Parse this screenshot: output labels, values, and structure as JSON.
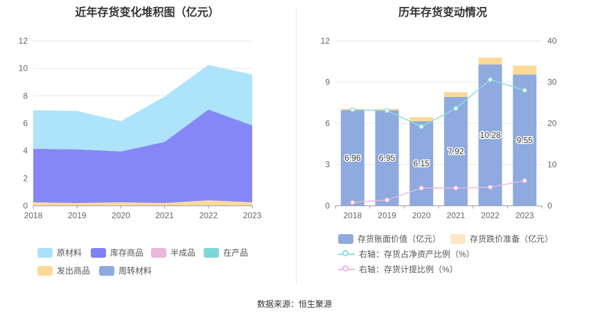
{
  "left": {
    "title": "近年存货变化堆积图（亿元）",
    "legend": [
      {
        "name": "原材料",
        "color": "#a9e1fb"
      },
      {
        "name": "库存商品",
        "color": "#7f81f7"
      },
      {
        "name": "半成品",
        "color": "#e9b8dc"
      },
      {
        "name": "在产品",
        "color": "#7fd6d8"
      },
      {
        "name": "发出商品",
        "color": "#fbd999"
      },
      {
        "name": "周转材料",
        "color": "#8eaade"
      }
    ]
  },
  "right": {
    "title": "历年存货变动情况",
    "legend": [
      {
        "name": "存货账面价值（亿元）",
        "color": "#8eaade",
        "kind": "bar"
      },
      {
        "name": "存货跌价准备（亿元）",
        "color": "#fde6c4",
        "kind": "bar"
      },
      {
        "name": "右轴：存货占净资产比例（%）",
        "color": "#8fdedd",
        "kind": "line"
      },
      {
        "name": "右轴：存货计提比例（%）",
        "color": "#eab8e0",
        "kind": "line"
      }
    ]
  },
  "source": "数据来源：恒生聚源",
  "chart_data": [
    {
      "type": "area",
      "title": "近年存货变化堆积图（亿元）",
      "x": [
        "2018",
        "2019",
        "2020",
        "2021",
        "2022",
        "2023"
      ],
      "ylim": [
        0,
        12
      ],
      "yticks": [
        0,
        2,
        4,
        6,
        8,
        10,
        12
      ],
      "stacked": true,
      "legend_position": "bottom",
      "series": [
        {
          "name": "发出商品",
          "color": "#fbd999",
          "values": [
            0.25,
            0.2,
            0.25,
            0.2,
            0.4,
            0.25
          ]
        },
        {
          "name": "库存商品",
          "color": "#7f81f7",
          "values": [
            3.9,
            3.9,
            3.7,
            4.45,
            6.6,
            5.6
          ]
        },
        {
          "name": "原材料",
          "color": "#a9e1fb",
          "values": [
            2.8,
            2.8,
            2.2,
            3.3,
            3.25,
            3.7
          ]
        },
        {
          "name": "半成品",
          "color": "#e9b8dc",
          "values": [
            0,
            0,
            0,
            0,
            0,
            0
          ]
        },
        {
          "name": "在产品",
          "color": "#7fd6d8",
          "values": [
            0,
            0,
            0,
            0,
            0,
            0
          ]
        },
        {
          "name": "周转材料",
          "color": "#8eaade",
          "values": [
            0,
            0,
            0,
            0,
            0,
            0
          ]
        }
      ]
    },
    {
      "type": "bar",
      "title": "历年存货变动情况",
      "categories": [
        "2018",
        "2019",
        "2020",
        "2021",
        "2022",
        "2023"
      ],
      "ylim": [
        0,
        12
      ],
      "yticks": [
        0,
        3,
        6,
        9,
        12
      ],
      "y2lim": [
        0,
        40
      ],
      "y2ticks": [
        0,
        10,
        20,
        30,
        40
      ],
      "stacked": true,
      "legend_position": "bottom",
      "series": [
        {
          "name": "存货账面价值（亿元）",
          "color": "#8eaade",
          "values": [
            6.96,
            6.95,
            6.15,
            7.92,
            10.28,
            9.55
          ],
          "labels": [
            "6.96",
            "6.95",
            "6.15",
            "7.92",
            "10.28",
            "9.55"
          ]
        },
        {
          "name": "存货跌价准备（亿元）",
          "color": "#fbd999",
          "values": [
            0.1,
            0.1,
            0.3,
            0.35,
            0.5,
            0.65
          ]
        }
      ],
      "line_series": [
        {
          "name": "右轴：存货占净资产比例（%）",
          "axis": "right",
          "color": "#8fdedd",
          "values": [
            23.3,
            23.1,
            19.2,
            23.6,
            30.6,
            28.0
          ]
        },
        {
          "name": "右轴：存货计提比例（%）",
          "axis": "right",
          "color": "#eab8e0",
          "values": [
            0.8,
            1.4,
            4.3,
            4.3,
            4.5,
            6.1
          ]
        }
      ]
    }
  ]
}
